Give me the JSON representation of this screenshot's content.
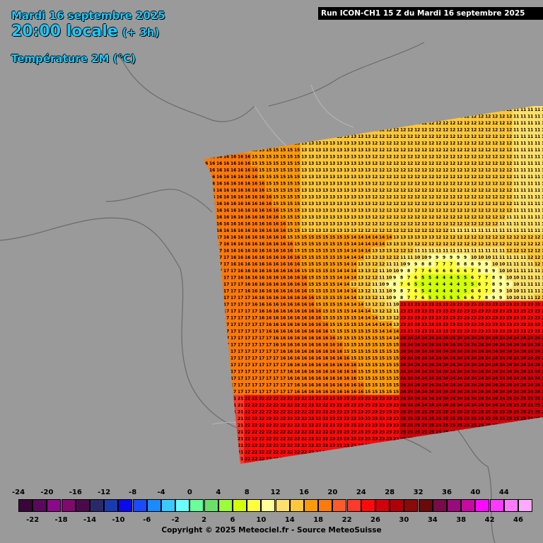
{
  "header": {
    "date": "Mardi 16 septembre 2025",
    "local_time": "20:00 locale",
    "offset": "(+ 3h)",
    "parameter": "Température 2M (°C)",
    "run": "Run ICON-CH1 15 Z du Mardi 16 septembre 2025"
  },
  "legend": {
    "top_labels": [
      "-24",
      "-20",
      "-16",
      "-12",
      "-8",
      "-4",
      "0",
      "4",
      "8",
      "12",
      "16",
      "20",
      "24",
      "28",
      "32",
      "36",
      "40",
      "44"
    ],
    "bottom_labels": [
      "-22",
      "-18",
      "-14",
      "-10",
      "-6",
      "-2",
      "2",
      "6",
      "10",
      "14",
      "18",
      "22",
      "26",
      "30",
      "34",
      "38",
      "42",
      "46"
    ],
    "colors": [
      "#3a0638",
      "#5a0a5a",
      "#8a0a8a",
      "#7e0a6e",
      "#4a0a4a",
      "#2a2a6a",
      "#1a3ab0",
      "#0a0aee",
      "#1a4aff",
      "#1a8aff",
      "#3ac8ff",
      "#6affff",
      "#6aff9a",
      "#6ae06a",
      "#9aff3a",
      "#d2ff0a",
      "#ffff3a",
      "#ffff9a",
      "#ffe06a",
      "#ffc83a",
      "#ff9a0a",
      "#ff7a0a",
      "#ff5a2a",
      "#ff3a2a",
      "#ff0a0a",
      "#d2000a",
      "#b0000a",
      "#8a0a0a",
      "#6a0a0a",
      "#7a0a4a",
      "#9a0a7a",
      "#c80aa0",
      "#ff0aff",
      "#ff3aff",
      "#ff7aff",
      "#ffaaff"
    ],
    "copyright": "Copyright © 2025 Meteociel.fr - Source MeteoSuisse"
  },
  "map": {
    "land_color": "#9a9a9a",
    "border_color": "#b8b8b8",
    "coast_color": "#6a6a6a"
  }
}
